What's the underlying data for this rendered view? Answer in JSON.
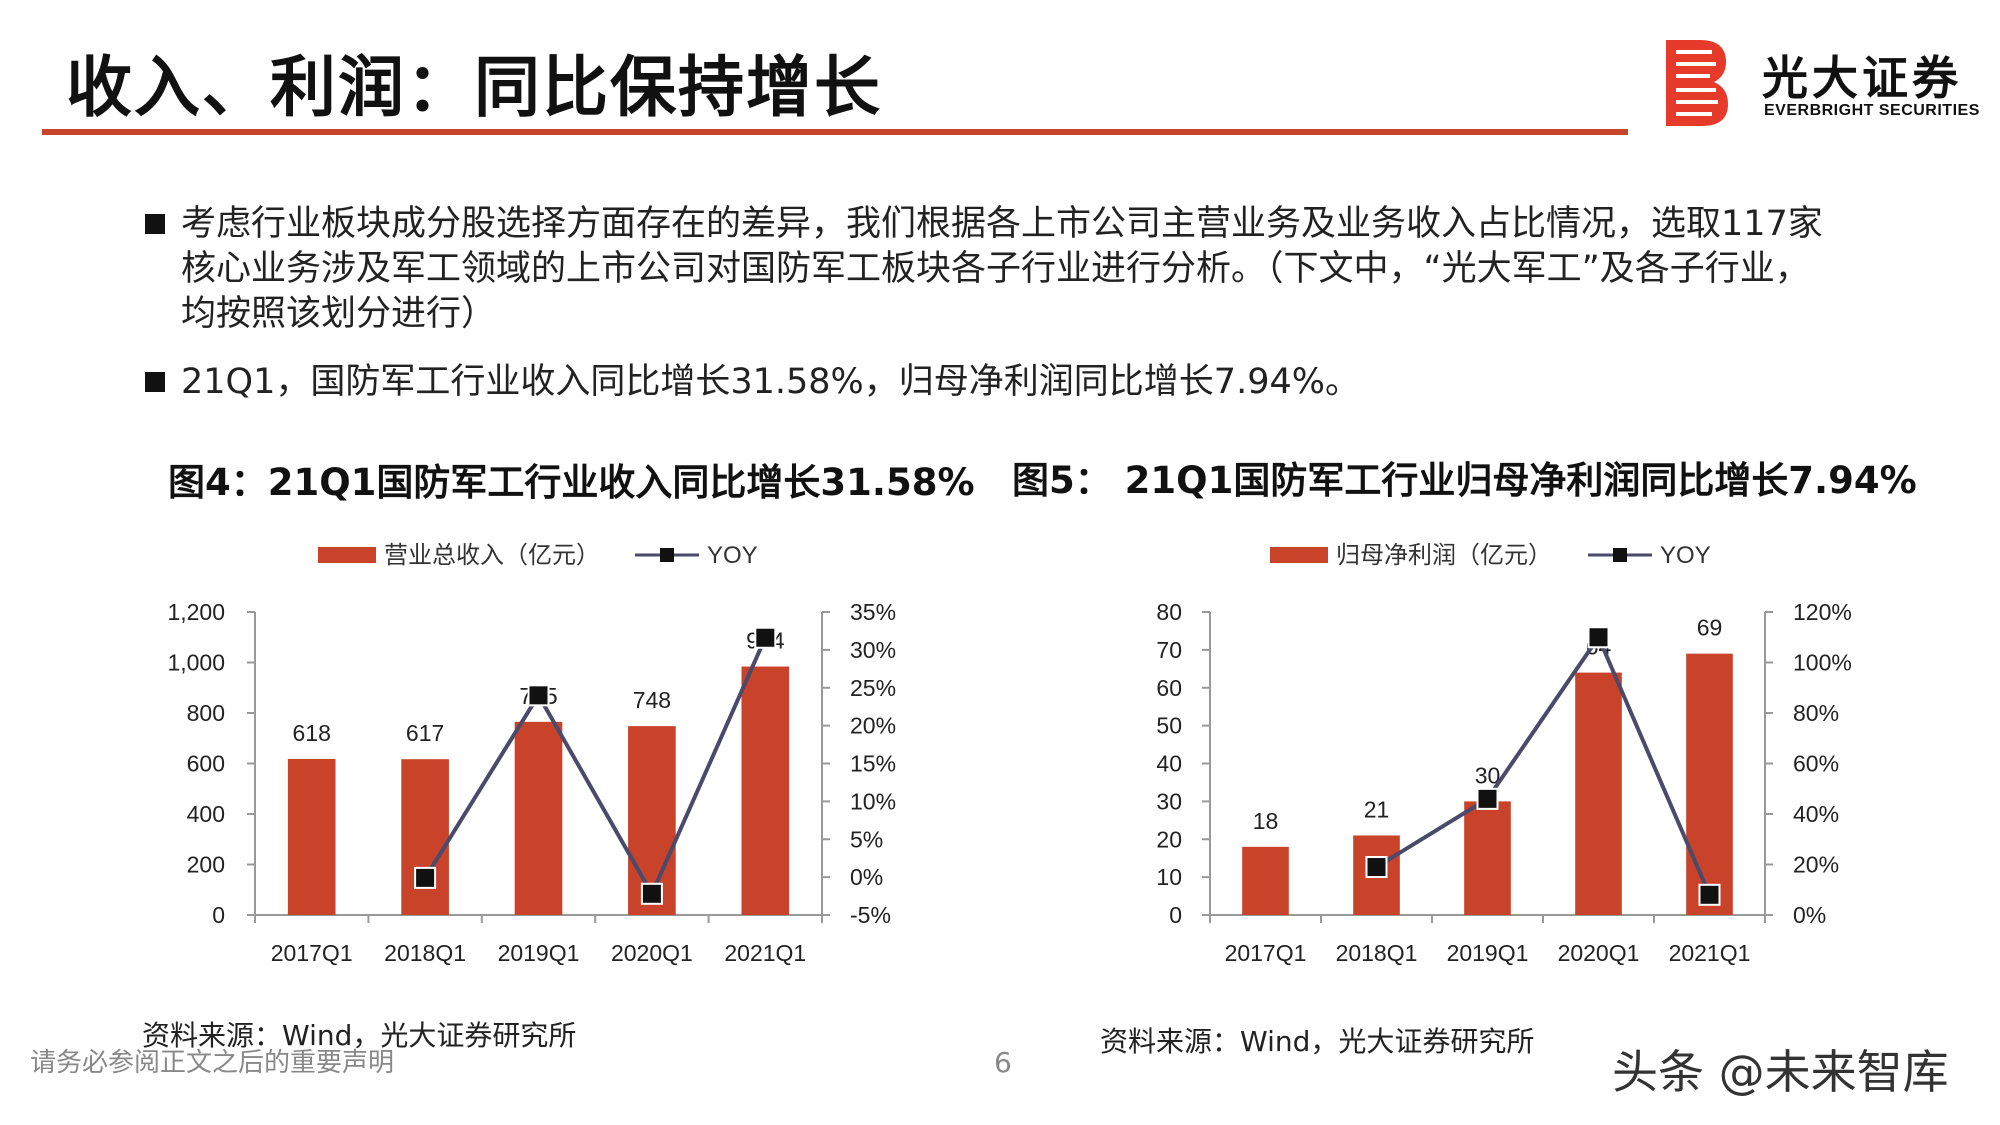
{
  "slide": {
    "title": "收入、利润：同比保持增长",
    "logo": {
      "cn": "光大证券",
      "en": "EVERBRIGHT SECURITIES"
    },
    "bullets": [
      "考虑行业板块成分股选择方面存在的差异，我们根据各上市公司主营业务及业务收入占比情况，选取117家核心业务涉及军工领域的上市公司对国防军工板块各子行业进行分析。（下文中，“光大军工”及各子行业，均按照该划分进行）",
      "21Q1，国防军工行业收入同比增长31.58%，归母净利润同比增长7.94%。"
    ],
    "disclaimer": "请务必参阅正文之后的重要声明",
    "page_number": "6",
    "watermark": "头条 @未来智库",
    "colors": {
      "accent": "#c8442a",
      "bar": "#c8432a",
      "line": "#4a4a6a",
      "marker": "#111111"
    }
  },
  "chart_data": [
    {
      "type": "bar",
      "figure_title": "图4：21Q1国防军工行业收入同比增长31.58%",
      "legend": {
        "placement": "top",
        "bar_label": "营业总收入（亿元）",
        "line_label": "YOY"
      },
      "categories": [
        "2017Q1",
        "2018Q1",
        "2019Q1",
        "2020Q1",
        "2021Q1"
      ],
      "series": [
        {
          "name": "营业总收入（亿元）",
          "type": "bar",
          "axis": "left",
          "values": [
            618,
            617,
            765,
            748,
            984
          ]
        },
        {
          "name": "YOY",
          "type": "line",
          "axis": "right",
          "values": [
            null,
            -0.1,
            24.0,
            -2.2,
            31.6
          ]
        }
      ],
      "left_axis": {
        "min": 0,
        "max": 1200,
        "ticks": [
          "0",
          "200",
          "400",
          "600",
          "800",
          "1,000",
          "1,200"
        ]
      },
      "right_axis": {
        "min": -5,
        "max": 35,
        "ticks": [
          "-5%",
          "0%",
          "5%",
          "10%",
          "15%",
          "20%",
          "25%",
          "30%",
          "35%"
        ]
      },
      "bar_labels": [
        "618",
        "617",
        "765",
        "748",
        "984"
      ],
      "source": "资料来源：Wind，光大证券研究所"
    },
    {
      "type": "bar",
      "figure_title": "图5： 21Q1国防军工行业归母净利润同比增长7.94%",
      "legend": {
        "placement": "top",
        "bar_label": "归母净利润（亿元）",
        "line_label": "YOY"
      },
      "categories": [
        "2017Q1",
        "2018Q1",
        "2019Q1",
        "2020Q1",
        "2021Q1"
      ],
      "series": [
        {
          "name": "归母净利润（亿元）",
          "type": "bar",
          "axis": "left",
          "values": [
            18,
            21,
            30,
            64,
            69
          ]
        },
        {
          "name": "YOY",
          "type": "line",
          "axis": "right",
          "values": [
            null,
            19,
            46,
            110,
            8
          ]
        }
      ],
      "left_axis": {
        "min": 0,
        "max": 80,
        "ticks": [
          "0",
          "10",
          "20",
          "30",
          "40",
          "50",
          "60",
          "70",
          "80"
        ]
      },
      "right_axis": {
        "min": 0,
        "max": 120,
        "ticks": [
          "0%",
          "20%",
          "40%",
          "60%",
          "80%",
          "100%",
          "120%"
        ]
      },
      "bar_labels": [
        "18",
        "21",
        "30",
        "64",
        "69"
      ],
      "source": "资料来源：Wind，光大证券研究所"
    }
  ]
}
